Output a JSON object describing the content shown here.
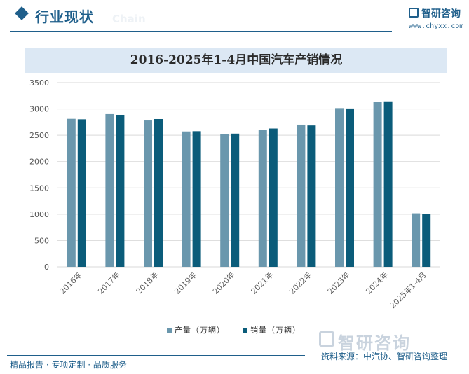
{
  "header": {
    "section_title": "行业现状",
    "section_bg_text": "Chain",
    "logo_text": "智研咨询",
    "logo_url": "www.chyxx.com"
  },
  "chart_data": {
    "type": "bar",
    "title": "2016-2025年1-4月中国汽车产销情况",
    "categories": [
      "2016年",
      "2017年",
      "2018年",
      "2019年",
      "2020年",
      "2021年",
      "2022年",
      "2023年",
      "2024年",
      "2025年1-4月"
    ],
    "series": [
      {
        "name": "产量（万辆）",
        "color": "#6a97ad",
        "values": [
          2812,
          2902,
          2781,
          2572,
          2523,
          2608,
          2702,
          3016,
          3128,
          1017
        ]
      },
      {
        "name": "销量（万辆）",
        "color": "#0b5c7a",
        "values": [
          2803,
          2888,
          2808,
          2577,
          2531,
          2628,
          2686,
          3009,
          3144,
          1006
        ]
      }
    ],
    "ylim": [
      0,
      3500
    ],
    "yticks": [
      0,
      500,
      1000,
      1500,
      2000,
      2500,
      3000,
      3500
    ],
    "grid": true,
    "legend": "bottom"
  },
  "footer": {
    "left_text": "精品报告 · 专项定制 · 品质服务",
    "logo_text": "智研咨询",
    "source": "资料来源：中汽协、智研咨询整理"
  }
}
